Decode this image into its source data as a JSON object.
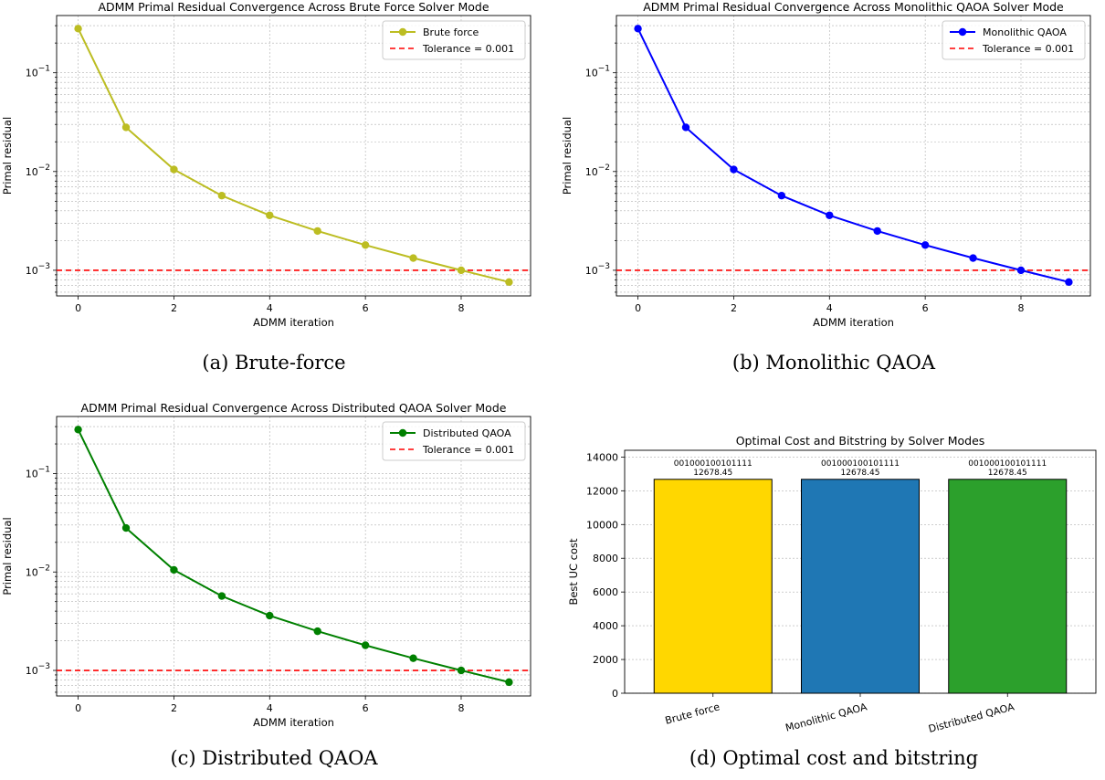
{
  "chart_data": [
    {
      "type": "line",
      "title": "ADMM Primal Residual Convergence Across Brute Force Solver Mode",
      "xlabel": "ADMM iteration",
      "ylabel": "Primal residual",
      "yscale": "log",
      "xlim": [
        -0.45,
        9.45
      ],
      "ylim": [
        0.00055,
        0.38
      ],
      "xticks": [
        0,
        2,
        4,
        6,
        8
      ],
      "ytick_labels": [
        "10^-3",
        "10^-2",
        "10^-1"
      ],
      "grid": true,
      "legend_position": "top-right",
      "series": [
        {
          "name": "Brute force",
          "color": "#bcbd22",
          "marker": "circle",
          "x": [
            0,
            1,
            2,
            3,
            4,
            5,
            6,
            7,
            8,
            9
          ],
          "y": [
            0.28,
            0.028,
            0.0105,
            0.0057,
            0.0036,
            0.0025,
            0.0018,
            0.00133,
            0.001,
            0.00076
          ]
        }
      ],
      "reference_line": {
        "name": "Tolerance = 0.001",
        "value": 0.001,
        "color": "#ff0000",
        "style": "dashed"
      }
    },
    {
      "type": "line",
      "title": "ADMM Primal Residual Convergence Across Monolithic QAOA Solver Mode",
      "xlabel": "ADMM iteration",
      "ylabel": "Primal residual",
      "yscale": "log",
      "xlim": [
        -0.45,
        9.45
      ],
      "ylim": [
        0.00055,
        0.38
      ],
      "xticks": [
        0,
        2,
        4,
        6,
        8
      ],
      "ytick_labels": [
        "10^-3",
        "10^-2",
        "10^-1"
      ],
      "grid": true,
      "legend_position": "top-right",
      "series": [
        {
          "name": "Monolithic QAOA",
          "color": "#0000ff",
          "marker": "circle",
          "x": [
            0,
            1,
            2,
            3,
            4,
            5,
            6,
            7,
            8,
            9
          ],
          "y": [
            0.28,
            0.028,
            0.0105,
            0.0057,
            0.0036,
            0.0025,
            0.0018,
            0.00133,
            0.001,
            0.00076
          ]
        }
      ],
      "reference_line": {
        "name": "Tolerance = 0.001",
        "value": 0.001,
        "color": "#ff0000",
        "style": "dashed"
      }
    },
    {
      "type": "line",
      "title": "ADMM Primal Residual Convergence Across Distributed QAOA Solver Mode",
      "xlabel": "ADMM iteration",
      "ylabel": "Primal residual",
      "yscale": "log",
      "xlim": [
        -0.45,
        9.45
      ],
      "ylim": [
        0.00055,
        0.38
      ],
      "xticks": [
        0,
        2,
        4,
        6,
        8
      ],
      "ytick_labels": [
        "10^-3",
        "10^-2",
        "10^-1"
      ],
      "grid": true,
      "legend_position": "top-right",
      "series": [
        {
          "name": "Distributed QAOA",
          "color": "#008000",
          "marker": "circle",
          "x": [
            0,
            1,
            2,
            3,
            4,
            5,
            6,
            7,
            8,
            9
          ],
          "y": [
            0.28,
            0.028,
            0.0105,
            0.0057,
            0.0036,
            0.0025,
            0.0018,
            0.00133,
            0.001,
            0.00076
          ]
        }
      ],
      "reference_line": {
        "name": "Tolerance = 0.001",
        "value": 0.001,
        "color": "#ff0000",
        "style": "dashed"
      }
    },
    {
      "type": "bar",
      "title": "Optimal Cost and Bitstring by Solver Modes",
      "xlabel": "",
      "ylabel": "Best UC cost",
      "ylim": [
        0,
        14400
      ],
      "yticks": [
        0,
        2000,
        4000,
        6000,
        8000,
        10000,
        12000,
        14000
      ],
      "grid": true,
      "categories": [
        "Brute force",
        "Monolithic QAOA",
        "Distributed QAOA"
      ],
      "values": [
        12678.45,
        12678.45,
        12678.45
      ],
      "bar_labels_bitstring": [
        "001000100101111",
        "001000100101111",
        "001000100101111"
      ],
      "bar_labels_value": [
        "12678.45",
        "12678.45",
        "12678.45"
      ],
      "colors": [
        "#ffd700",
        "#1f77b4",
        "#2ca02c"
      ]
    }
  ],
  "captions": {
    "a": "(a) Brute-force",
    "b": "(b) Monolithic QAOA",
    "c": "(c) Distributed QAOA",
    "d": "(d) Optimal cost and bitstring"
  }
}
